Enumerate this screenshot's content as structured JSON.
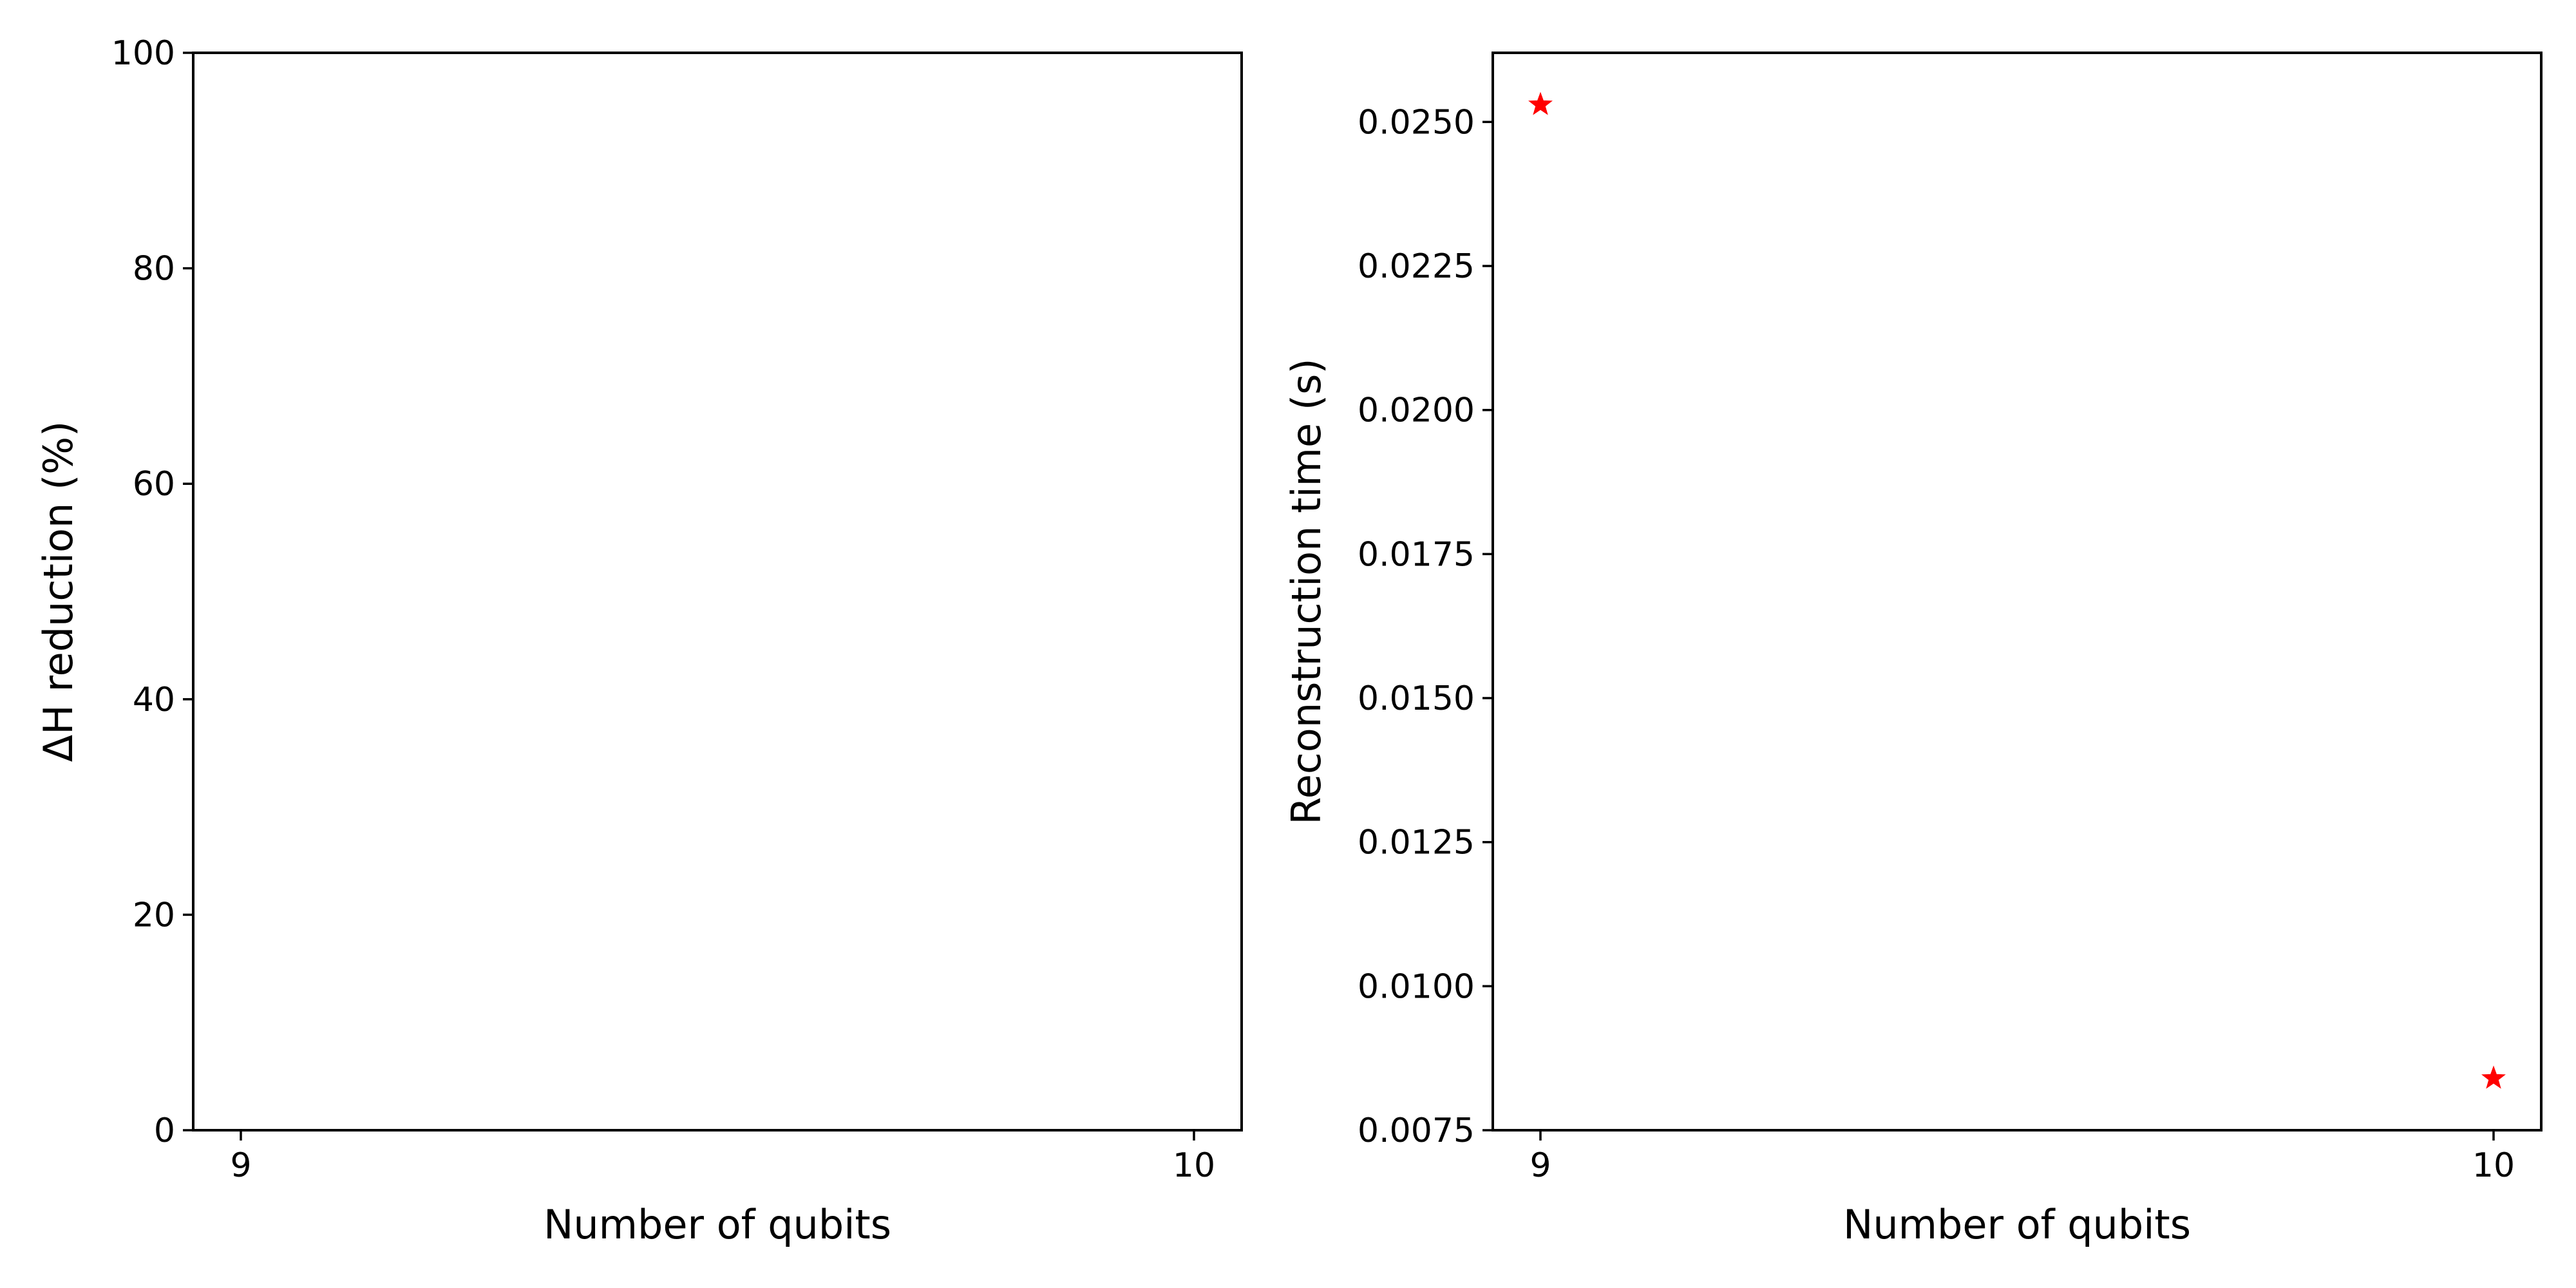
{
  "chart_data": [
    {
      "type": "scatter",
      "title": "",
      "xlabel": "Number of qubits",
      "ylabel": "ΔH reduction (%)",
      "xlim": [
        8.95,
        10.05
      ],
      "ylim": [
        0,
        100
      ],
      "xticks": [
        9,
        10
      ],
      "xtick_labels": [
        "9",
        "10"
      ],
      "yticks": [
        0,
        20,
        40,
        60,
        80,
        100
      ],
      "ytick_labels": [
        "0",
        "20",
        "40",
        "60",
        "80",
        "100"
      ],
      "grid": false,
      "series": [
        {
          "x": [],
          "y": [],
          "marker": "star",
          "color": "#ff0000"
        }
      ]
    },
    {
      "type": "scatter",
      "title": "",
      "xlabel": "Number of qubits",
      "ylabel": "Reconstruction time (s)",
      "xlim": [
        8.95,
        10.05
      ],
      "ylim": [
        0.0075,
        0.0262
      ],
      "xticks": [
        9,
        10
      ],
      "xtick_labels": [
        "9",
        "10"
      ],
      "yticks": [
        0.0075,
        0.01,
        0.0125,
        0.015,
        0.0175,
        0.02,
        0.0225,
        0.025
      ],
      "ytick_labels": [
        "0.0075",
        "0.0100",
        "0.0125",
        "0.0150",
        "0.0175",
        "0.0200",
        "0.0225",
        "0.0250"
      ],
      "grid": false,
      "series": [
        {
          "x": [
            9,
            10
          ],
          "y": [
            0.0253,
            0.0084
          ],
          "marker": "star",
          "color": "#ff0000"
        }
      ]
    }
  ]
}
